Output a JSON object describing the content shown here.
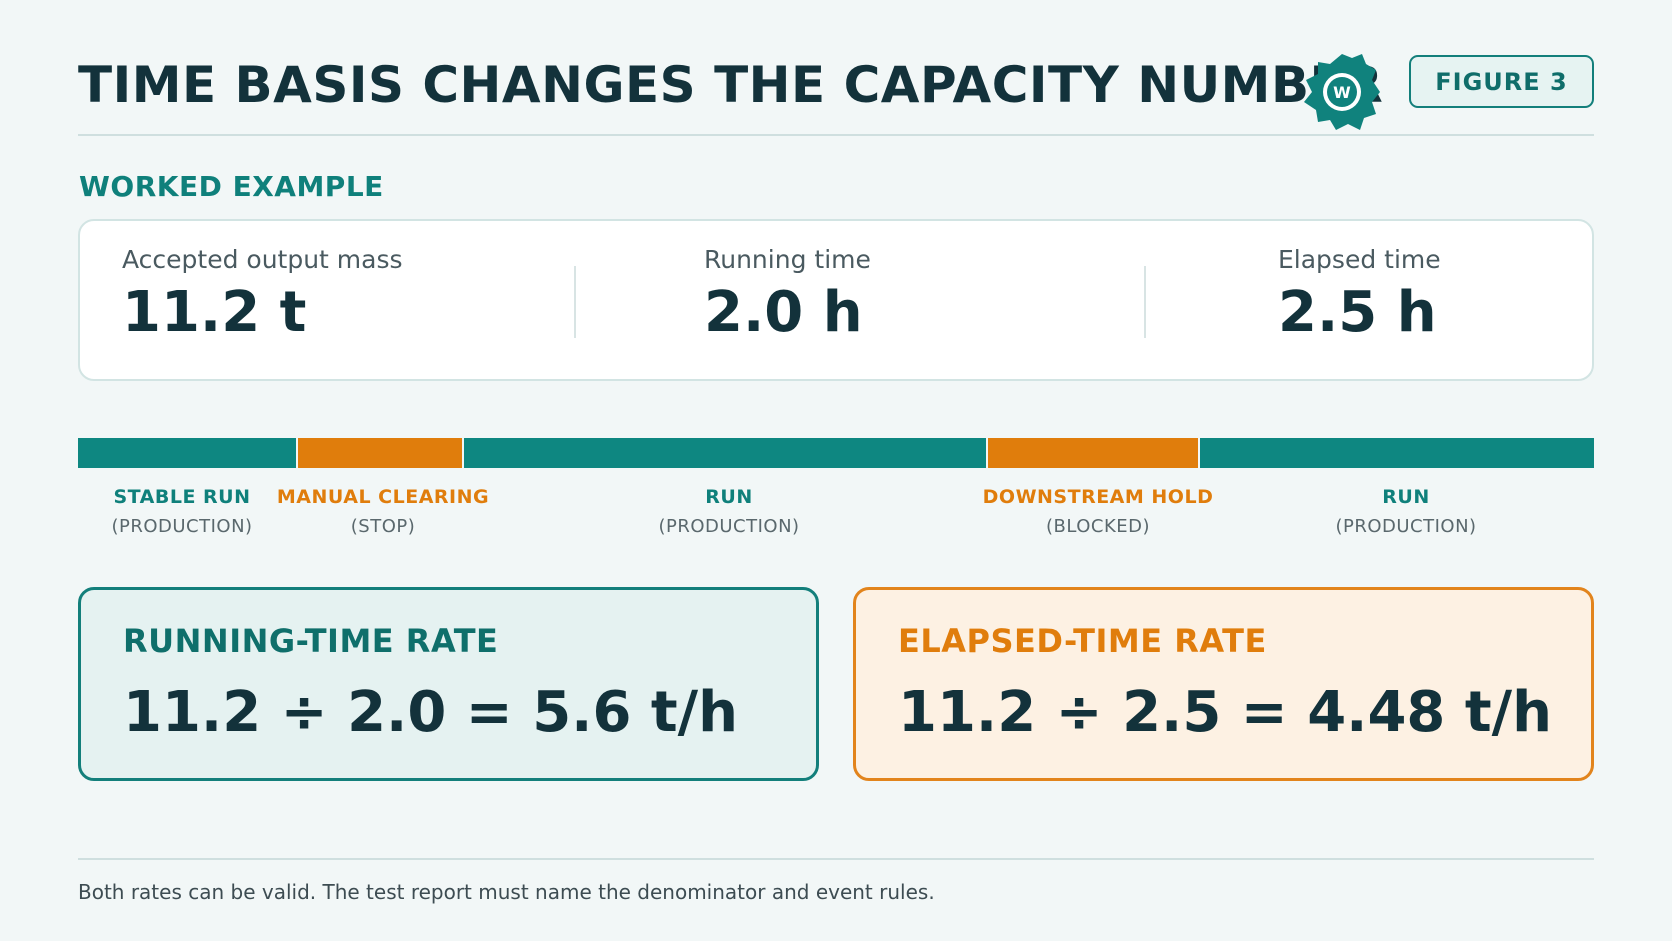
{
  "header": {
    "title": "TIME BASIS CHANGES THE CAPACITY NUMBER",
    "figure_label": "FIGURE 3",
    "logo_icon": "gear-logo-icon"
  },
  "section_label": "WORKED EXAMPLE",
  "stats": [
    {
      "label": "Accepted output mass",
      "value": "11.2 t"
    },
    {
      "label": "Running time",
      "value": "2.0 h"
    },
    {
      "label": "Elapsed time",
      "value": "2.5 h"
    }
  ],
  "timeline": {
    "segments": [
      {
        "name": "STABLE RUN",
        "kind": "(PRODUCTION)",
        "state": "production"
      },
      {
        "name": "MANUAL CLEARING",
        "kind": "(STOP)",
        "state": "stop"
      },
      {
        "name": "RUN",
        "kind": "(PRODUCTION)",
        "state": "production"
      },
      {
        "name": "DOWNSTREAM HOLD",
        "kind": "(BLOCKED)",
        "state": "stop"
      },
      {
        "name": "RUN",
        "kind": "(PRODUCTION)",
        "state": "production"
      }
    ],
    "colors": {
      "production": "#0e8781",
      "stop": "#e07d0c"
    }
  },
  "rates": {
    "running": {
      "title": "RUNNING-TIME RATE",
      "equation": "11.2 ÷ 2.0 = 5.6 t/h"
    },
    "elapsed": {
      "title": "ELAPSED-TIME RATE",
      "equation": "11.2 ÷ 2.5 = 4.48 t/h"
    }
  },
  "footnote": "Both rates can be valid. The test report must name the denominator and event rules."
}
